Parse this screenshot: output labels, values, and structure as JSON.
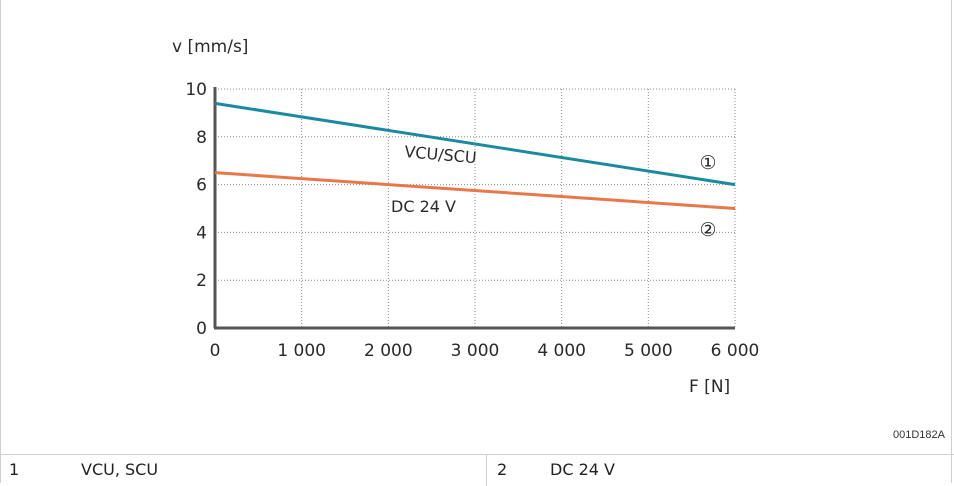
{
  "chart_data": {
    "type": "line",
    "xlabel": "F [N]",
    "ylabel": "v [mm/s]",
    "xlim": [
      0,
      6000
    ],
    "ylim": [
      0,
      10
    ],
    "x_ticks": [
      0,
      1000,
      2000,
      3000,
      4000,
      5000,
      6000
    ],
    "x_tick_labels": [
      "0",
      "1 000",
      "2 000",
      "3 000",
      "4 000",
      "5 000",
      "6 000"
    ],
    "y_ticks": [
      0,
      2,
      4,
      6,
      8,
      10
    ],
    "y_tick_labels": [
      "0",
      "2",
      "4",
      "6",
      "8",
      "10"
    ],
    "grid": true,
    "series": [
      {
        "name": "VCU/SCU",
        "marker": "①",
        "color": "#1a8aa3",
        "x": [
          0,
          6000
        ],
        "y": [
          9.4,
          6.0
        ]
      },
      {
        "name": "DC 24 V",
        "marker": "②",
        "color": "#e8774a",
        "x": [
          0,
          6000
        ],
        "y": [
          6.5,
          5.0
        ]
      }
    ]
  },
  "figure_code": "001D182A",
  "legend": [
    {
      "number": "1",
      "label": "VCU, SCU"
    },
    {
      "number": "2",
      "label": "DC 24 V"
    }
  ]
}
